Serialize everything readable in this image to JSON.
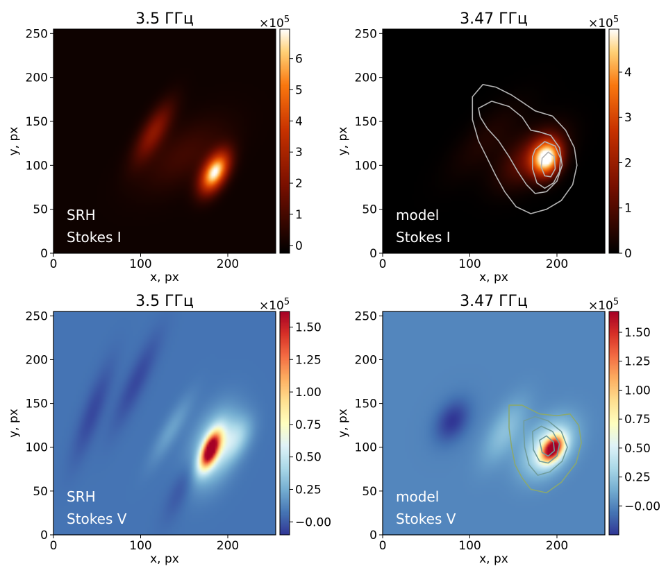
{
  "chart_data": [
    {
      "type": "heatmap",
      "title": "3.5 ГГц",
      "xlabel": "x, px",
      "ylabel": "y, px",
      "xlim": [
        0,
        255
      ],
      "ylim": [
        0,
        255
      ],
      "xticks": [
        0,
        100,
        200
      ],
      "yticks": [
        0,
        50,
        100,
        150,
        200,
        250
      ],
      "annotation": [
        "SRH",
        "Stokes I"
      ],
      "colormap": "gist_heat",
      "colorbar": {
        "multiplier": "×10",
        "exponent": "5",
        "min": -0.25,
        "max": 6.95,
        "ticks": [
          0,
          1,
          2,
          3,
          4,
          5,
          6
        ]
      },
      "features": [
        {
          "x": 185,
          "y": 92,
          "amplitude": 6.9,
          "sigma_major": 17,
          "sigma_minor": 9,
          "angle_deg": 62
        },
        {
          "x": 115,
          "y": 138,
          "amplitude": 2.3,
          "sigma_major": 26,
          "sigma_minor": 9,
          "angle_deg": 60
        },
        {
          "x": 150,
          "y": 112,
          "amplitude": 0.9,
          "sigma_major": 40,
          "sigma_minor": 20,
          "angle_deg": 35
        }
      ],
      "contours": []
    },
    {
      "type": "heatmap",
      "title": "3.47 ГГц",
      "xlabel": "x, px",
      "ylabel": "y, px",
      "xlim": [
        0,
        255
      ],
      "ylim": [
        0,
        255
      ],
      "xticks": [
        0,
        100,
        200
      ],
      "yticks": [
        0,
        50,
        100,
        150,
        200,
        250
      ],
      "annotation": [
        "model",
        "Stokes I"
      ],
      "colormap": "gist_heat",
      "colorbar": {
        "multiplier": "×10",
        "exponent": "5",
        "min": 0,
        "max": 4.95,
        "ticks": [
          0,
          1,
          2,
          3,
          4
        ]
      },
      "features": [
        {
          "x": 188,
          "y": 108,
          "amplitude": 4.9,
          "sigma_major": 14,
          "sigma_minor": 11,
          "angle_deg": 70
        },
        {
          "x": 170,
          "y": 110,
          "amplitude": 1.3,
          "sigma_major": 30,
          "sigma_minor": 16,
          "angle_deg": 40
        },
        {
          "x": 120,
          "y": 130,
          "amplitude": 0.4,
          "sigma_major": 40,
          "sigma_minor": 15,
          "angle_deg": 45
        }
      ],
      "contours": [
        {
          "color": "#b4b4b4",
          "points": [
            [
              103,
              178
            ],
            [
              115,
              192
            ],
            [
              130,
              189
            ],
            [
              148,
              180
            ],
            [
              160,
              172
            ],
            [
              175,
              162
            ],
            [
              195,
              156
            ],
            [
              210,
              140
            ],
            [
              220,
              120
            ],
            [
              223,
              100
            ],
            [
              218,
              78
            ],
            [
              205,
              60
            ],
            [
              188,
              50
            ],
            [
              170,
              45
            ],
            [
              153,
              53
            ],
            [
              140,
              70
            ],
            [
              130,
              88
            ],
            [
              120,
              108
            ],
            [
              110,
              128
            ],
            [
              103,
              152
            ]
          ]
        },
        {
          "color": "#b4b4b4",
          "points": [
            [
              110,
              165
            ],
            [
              125,
              173
            ],
            [
              145,
              167
            ],
            [
              160,
              155
            ],
            [
              170,
              140
            ],
            [
              180,
              138
            ],
            [
              193,
              134
            ],
            [
              203,
              120
            ],
            [
              206,
              100
            ],
            [
              200,
              82
            ],
            [
              188,
              70
            ],
            [
              175,
              68
            ],
            [
              165,
              78
            ],
            [
              155,
              93
            ],
            [
              145,
              110
            ],
            [
              133,
              128
            ],
            [
              120,
              142
            ],
            [
              112,
              155
            ]
          ]
        },
        {
          "color": "#b4b4b4",
          "points": [
            [
              175,
              118
            ],
            [
              186,
              127
            ],
            [
              198,
              122
            ],
            [
              204,
              108
            ],
            [
              203,
              93
            ],
            [
              196,
              80
            ],
            [
              186,
              74
            ],
            [
              177,
              80
            ],
            [
              172,
              96
            ],
            [
              172,
              110
            ]
          ]
        },
        {
          "color": "#b4b4b4",
          "points": [
            [
              183,
              108
            ],
            [
              190,
              115
            ],
            [
              197,
              110
            ],
            [
              198,
              96
            ],
            [
              193,
              87
            ],
            [
              186,
              88
            ],
            [
              182,
              98
            ]
          ]
        }
      ]
    },
    {
      "type": "heatmap",
      "title": "3.5 ГГц",
      "xlabel": "x, px",
      "ylabel": "y, px",
      "xlim": [
        0,
        255
      ],
      "ylim": [
        0,
        255
      ],
      "xticks": [
        0,
        100,
        200
      ],
      "yticks": [
        0,
        50,
        100,
        150,
        200,
        250
      ],
      "annotation": [
        "SRH",
        "Stokes V"
      ],
      "colormap": "RdYlBu",
      "colorbar": {
        "multiplier": "×10",
        "exponent": "5",
        "min": -0.1,
        "max": 1.62,
        "ticks": [
          -0.0,
          0.25,
          0.5,
          0.75,
          1.0,
          1.25,
          1.5
        ],
        "tick_labels": [
          "−0.00",
          "0.25",
          "0.50",
          "0.75",
          "1.00",
          "1.25",
          "1.50"
        ]
      },
      "background": 0.07,
      "features": [
        {
          "x": 180,
          "y": 97,
          "amplitude": 1.55,
          "sigma_major": 15,
          "sigma_minor": 6,
          "angle_deg": 68
        },
        {
          "x": 185,
          "y": 100,
          "amplitude": 0.45,
          "sigma_major": 30,
          "sigma_minor": 16,
          "angle_deg": 68
        },
        {
          "x": 210,
          "y": 110,
          "amplitude": 0.25,
          "sigma_major": 18,
          "sigma_minor": 10,
          "angle_deg": 60
        },
        {
          "x": 135,
          "y": 120,
          "amplitude": 0.14,
          "sigma_major": 30,
          "sigma_minor": 7,
          "angle_deg": 60
        },
        {
          "x": 95,
          "y": 175,
          "amplitude": -0.12,
          "sigma_major": 40,
          "sigma_minor": 8,
          "angle_deg": 65
        },
        {
          "x": 45,
          "y": 140,
          "amplitude": -0.12,
          "sigma_major": 40,
          "sigma_minor": 8,
          "angle_deg": 70
        },
        {
          "x": 150,
          "y": 60,
          "amplitude": -0.1,
          "sigma_major": 30,
          "sigma_minor": 8,
          "angle_deg": 65
        }
      ],
      "contours": []
    },
    {
      "type": "heatmap",
      "title": "3.47 ГГц",
      "xlabel": "x, px",
      "ylabel": "y, px",
      "xlim": [
        0,
        255
      ],
      "ylim": [
        0,
        255
      ],
      "xticks": [
        0,
        100,
        200
      ],
      "yticks": [
        0,
        50,
        100,
        150,
        200,
        250
      ],
      "annotation": [
        "model",
        "Stokes V"
      ],
      "colormap": "RdYlBu",
      "colorbar": {
        "multiplier": "×10",
        "exponent": "5",
        "min": -0.25,
        "max": 1.68,
        "ticks": [
          0.0,
          0.25,
          0.5,
          0.75,
          1.0,
          1.25,
          1.5
        ],
        "tick_labels": [
          "−0.00",
          "0.25",
          "0.50",
          "0.75",
          "1.00",
          "1.25",
          "1.50"
        ]
      },
      "background": 0.0,
      "features": [
        {
          "x": 195,
          "y": 98,
          "amplitude": 1.6,
          "sigma_major": 11,
          "sigma_minor": 7,
          "angle_deg": 55
        },
        {
          "x": 190,
          "y": 100,
          "amplitude": 0.5,
          "sigma_major": 25,
          "sigma_minor": 16,
          "angle_deg": 50
        },
        {
          "x": 140,
          "y": 118,
          "amplitude": 0.22,
          "sigma_major": 28,
          "sigma_minor": 12,
          "angle_deg": 60
        },
        {
          "x": 80,
          "y": 130,
          "amplitude": -0.25,
          "sigma_major": 18,
          "sigma_minor": 12,
          "angle_deg": 60
        }
      ],
      "contours": [
        {
          "color": "#8aa870",
          "points": [
            [
              145,
              148
            ],
            [
              160,
              148
            ],
            [
              180,
              138
            ],
            [
              200,
              136
            ],
            [
              215,
              138
            ],
            [
              225,
              125
            ],
            [
              228,
              105
            ],
            [
              222,
              82
            ],
            [
              205,
              60
            ],
            [
              188,
              48
            ],
            [
              170,
              52
            ],
            [
              160,
              65
            ],
            [
              152,
              80
            ],
            [
              148,
              100
            ],
            [
              145,
              122
            ]
          ]
        },
        {
          "color": "#6f9c9c",
          "points": [
            [
              162,
              130
            ],
            [
              175,
              135
            ],
            [
              190,
              130
            ],
            [
              205,
              118
            ],
            [
              212,
              100
            ],
            [
              206,
              84
            ],
            [
              192,
              72
            ],
            [
              178,
              68
            ],
            [
              168,
              80
            ],
            [
              163,
              100
            ],
            [
              162,
              118
            ]
          ]
        },
        {
          "color": "#6f9c9c",
          "points": [
            [
              172,
              118
            ],
            [
              182,
              124
            ],
            [
              195,
              118
            ],
            [
              203,
              104
            ],
            [
              200,
              90
            ],
            [
              190,
              82
            ],
            [
              180,
              84
            ],
            [
              173,
              97
            ]
          ]
        },
        {
          "color": "#6f9c9c",
          "points": [
            [
              180,
              108
            ],
            [
              188,
              113
            ],
            [
              196,
              106
            ],
            [
              197,
              96
            ],
            [
              190,
              90
            ],
            [
              183,
              94
            ]
          ]
        }
      ]
    }
  ]
}
